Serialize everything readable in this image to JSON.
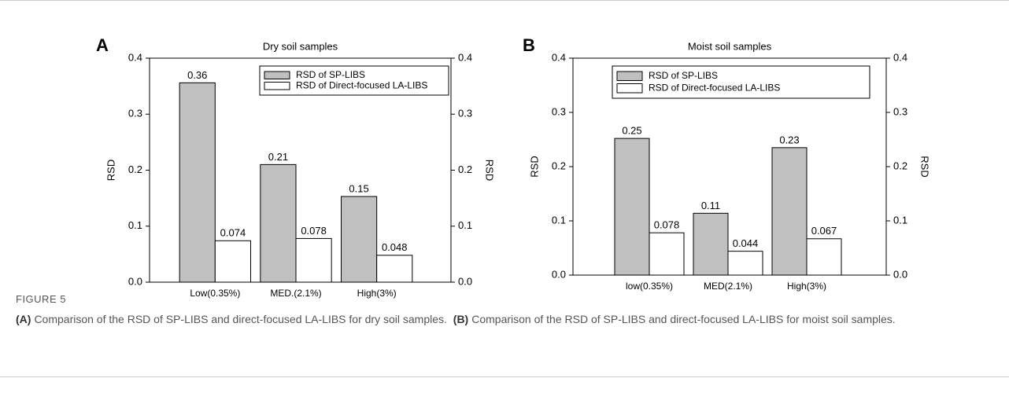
{
  "chart_data": [
    {
      "type": "bar",
      "panel": "A",
      "title": "Dry soil samples",
      "ylabel": "RSD",
      "y2label": "RSD",
      "categories": [
        "Low(0.35%)",
        "MED.(2.1%)",
        "High(3%)"
      ],
      "series": [
        {
          "name": "RSD of SP-LIBS",
          "color": "#c0c0c0",
          "values": [
            0.356,
            0.21,
            0.153
          ],
          "value_labels": [
            "0.36",
            "0.21",
            "0.15"
          ]
        },
        {
          "name": "RSD of Direct-focused LA-LIBS",
          "color": "#ffffff",
          "values": [
            0.074,
            0.078,
            0.048
          ],
          "value_labels": [
            "0.074",
            "0.078",
            "0.048"
          ]
        }
      ],
      "ylim": [
        0,
        0.4
      ],
      "yticks": [
        {
          "value": 0,
          "label": "0.0"
        },
        0.1,
        0.2,
        0.3,
        0.4
      ],
      "y2lim": [
        0,
        0.4
      ],
      "y2ticks": [
        {
          "value": 0,
          "label": "0.0"
        },
        0.1,
        0.2,
        0.3,
        0.4
      ],
      "legend": "upper right"
    },
    {
      "type": "bar",
      "panel": "B",
      "title": "Moist soil samples",
      "ylabel": "RSD",
      "y2label": "RSD",
      "categories": [
        "low(0.35%)",
        "MED(2.1%)",
        "High(3%)"
      ],
      "series": [
        {
          "name": "RSD of SP-LIBS",
          "color": "#c0c0c0",
          "values": [
            0.252,
            0.114,
            0.235
          ],
          "value_labels": [
            "0.25",
            "0.11",
            "0.23"
          ]
        },
        {
          "name": "RSD of Direct-focused LA-LIBS",
          "color": "#ffffff",
          "values": [
            0.078,
            0.044,
            0.067
          ],
          "value_labels": [
            "0.078",
            "0.044",
            "0.067"
          ]
        }
      ],
      "ylim": [
        0,
        0.4
      ],
      "yticks": [
        {
          "value": 0,
          "label": "0.0"
        },
        0.1,
        0.2,
        0.3,
        0.4
      ],
      "y2lim": [
        0,
        0.4
      ],
      "y2ticks": [
        {
          "value": 0,
          "label": "0.0"
        },
        0.1,
        0.2,
        0.3,
        0.4
      ],
      "legend": "upper right"
    }
  ],
  "figure": {
    "label": "FIGURE 5",
    "caption": [
      {
        "panel": "(A)",
        "text": "Comparison of the RSD of SP-LIBS and direct-focused LA-LIBS for dry soil samples."
      },
      {
        "panel": "(B)",
        "text": "Comparison of the RSD of SP-LIBS and direct-focused LA-LIBS for moist soil samples."
      }
    ]
  }
}
